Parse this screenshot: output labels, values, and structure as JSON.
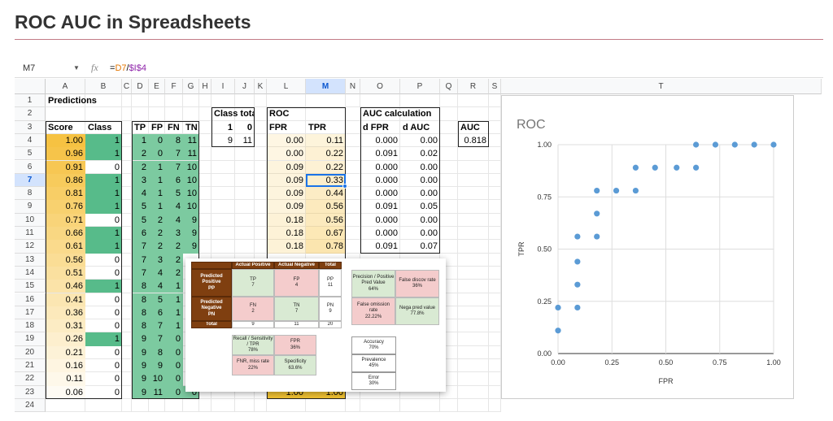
{
  "header": {
    "title": "ROC AUC in Spreadsheets"
  },
  "formula_bar": {
    "cell": "M7",
    "fx": "fx",
    "formula": [
      "=",
      "D7",
      "/",
      "$I$4"
    ]
  },
  "columns": [
    "A",
    "B",
    "C",
    "D",
    "E",
    "F",
    "G",
    "H",
    "I",
    "J",
    "K",
    "L",
    "M",
    "N",
    "O",
    "P",
    "Q",
    "R",
    "S",
    "T"
  ],
  "rows": [
    1,
    2,
    3,
    4,
    5,
    6,
    7,
    8,
    9,
    10,
    11,
    12,
    13,
    14,
    15,
    16,
    17,
    18,
    19,
    20,
    21,
    22,
    23,
    24
  ],
  "predictions": {
    "title": "Predictions",
    "headers": [
      "Score",
      "Class"
    ],
    "score": [
      "1.00",
      "0.96",
      "0.91",
      "0.86",
      "0.81",
      "0.76",
      "0.71",
      "0.66",
      "0.61",
      "0.56",
      "0.51",
      "0.46",
      "0.41",
      "0.36",
      "0.31",
      "0.26",
      "0.21",
      "0.16",
      "0.11",
      "0.06"
    ],
    "class": [
      1,
      1,
      0,
      1,
      1,
      1,
      0,
      1,
      1,
      0,
      0,
      1,
      0,
      0,
      0,
      1,
      0,
      0,
      0,
      0
    ]
  },
  "counts": {
    "headers": [
      "TP",
      "FP",
      "FN",
      "TN"
    ],
    "rows": [
      [
        1,
        0,
        8,
        11
      ],
      [
        2,
        0,
        7,
        11
      ],
      [
        2,
        1,
        7,
        10
      ],
      [
        3,
        1,
        6,
        10
      ],
      [
        4,
        1,
        5,
        10
      ],
      [
        5,
        1,
        4,
        10
      ],
      [
        5,
        2,
        4,
        9
      ],
      [
        6,
        2,
        3,
        9
      ],
      [
        7,
        2,
        2,
        9
      ],
      [
        7,
        3,
        2,
        null
      ],
      [
        7,
        4,
        2,
        null
      ],
      [
        8,
        4,
        1,
        null
      ],
      [
        8,
        5,
        1,
        null
      ],
      [
        8,
        6,
        1,
        null
      ],
      [
        8,
        7,
        1,
        null
      ],
      [
        9,
        7,
        0,
        null
      ],
      [
        9,
        8,
        0,
        null
      ],
      [
        9,
        9,
        0,
        null
      ],
      [
        9,
        10,
        0,
        null
      ],
      [
        9,
        11,
        0,
        0
      ]
    ]
  },
  "class_total": {
    "title": "Class total",
    "headers": [
      1,
      0
    ],
    "values": [
      9,
      11
    ]
  },
  "roc": {
    "title": "ROC",
    "headers": [
      "FPR",
      "TPR"
    ],
    "fpr": [
      "0.00",
      "0.00",
      "0.09",
      "0.09",
      "0.09",
      "0.09",
      "0.18",
      "0.18",
      "0.18",
      null,
      null,
      null,
      null,
      null,
      null,
      null,
      null,
      null,
      null,
      "1.00"
    ],
    "tpr": [
      "0.11",
      "0.22",
      "0.22",
      "0.33",
      "0.44",
      "0.56",
      "0.56",
      "0.67",
      "0.78",
      null,
      null,
      null,
      null,
      null,
      null,
      null,
      null,
      null,
      null,
      "1.00"
    ]
  },
  "auc_calc": {
    "title": "AUC calculation",
    "headers": [
      "d FPR",
      "d AUC"
    ],
    "d_fpr": [
      "0.000",
      "0.091",
      "0.000",
      "0.000",
      "0.000",
      "0.091",
      "0.000",
      "0.000",
      "0.091"
    ],
    "d_auc": [
      "0.00",
      "0.02",
      "0.00",
      "0.00",
      "0.00",
      "0.05",
      "0.00",
      "0.00",
      "0.07"
    ]
  },
  "auc": {
    "header": "AUC",
    "value": "0.818"
  },
  "chart": {
    "type": "scatter",
    "title": "ROC",
    "x_label": "FPR",
    "y_label": "TPR",
    "color": "#5b9bd5",
    "grid": true,
    "x": [
      0,
      0,
      0.09,
      0.09,
      0.09,
      0.09,
      0.18,
      0.18,
      0.18,
      0.27,
      0.36,
      0.36,
      0.45,
      0.55,
      0.64,
      0.64,
      0.73,
      0.82,
      0.91,
      1
    ],
    "y": [
      0.11,
      0.22,
      0.22,
      0.33,
      0.44,
      0.56,
      0.56,
      0.67,
      0.78,
      0.78,
      0.78,
      0.89,
      0.89,
      0.89,
      0.89,
      1,
      1,
      1,
      1,
      1
    ],
    "xlim": [
      0,
      1
    ],
    "ylim": [
      0,
      1
    ],
    "xticks": [
      {
        "value": 0,
        "label": "0.00"
      },
      {
        "value": 0.25,
        "label": "0.25"
      },
      {
        "value": 0.5,
        "label": "0.50"
      },
      {
        "value": 0.75,
        "label": "0.75"
      },
      {
        "value": 1,
        "label": "1.00"
      }
    ],
    "yticks": [
      {
        "value": 0,
        "label": "0.00"
      },
      {
        "value": 0.25,
        "label": "0.25"
      },
      {
        "value": 0.5,
        "label": "0.50"
      },
      {
        "value": 0.75,
        "label": "0.75"
      },
      {
        "value": 1,
        "label": "1.00"
      }
    ]
  },
  "popup": {
    "confusion": {
      "headers": [
        "Actual Positive",
        "Actual Negative",
        "Total"
      ],
      "rows": [
        {
          "label": "Predicted Positive",
          "sub": "PP",
          "cells": [
            [
              "TP",
              "7"
            ],
            [
              "FP",
              "4"
            ],
            [
              "PP",
              "11"
            ]
          ]
        },
        {
          "label": "Predicted Negative",
          "sub": "PN",
          "cells": [
            [
              "FN",
              "2"
            ],
            [
              "TN",
              "7"
            ],
            [
              "PN",
              "9"
            ]
          ]
        }
      ],
      "total": [
        "Total",
        "9",
        "11",
        "20"
      ]
    },
    "rates": [
      [
        "Precision / Positive Pred Value",
        "64%"
      ],
      [
        "False discov rate",
        "36%"
      ],
      [
        "False omission rate",
        "22.22%"
      ],
      [
        "Nega pred value",
        "77.8%"
      ]
    ],
    "recall": [
      [
        "Recall / Sensitivity / TPR",
        "78%"
      ],
      [
        "FPR",
        "36%"
      ],
      [
        "FNR, miss rate",
        "22%"
      ],
      [
        "Specificity",
        "63.6%"
      ]
    ],
    "summary": [
      [
        "Accuracy",
        "70%"
      ],
      [
        "Prevalence",
        "45%"
      ],
      [
        "Error",
        "30%"
      ]
    ]
  }
}
